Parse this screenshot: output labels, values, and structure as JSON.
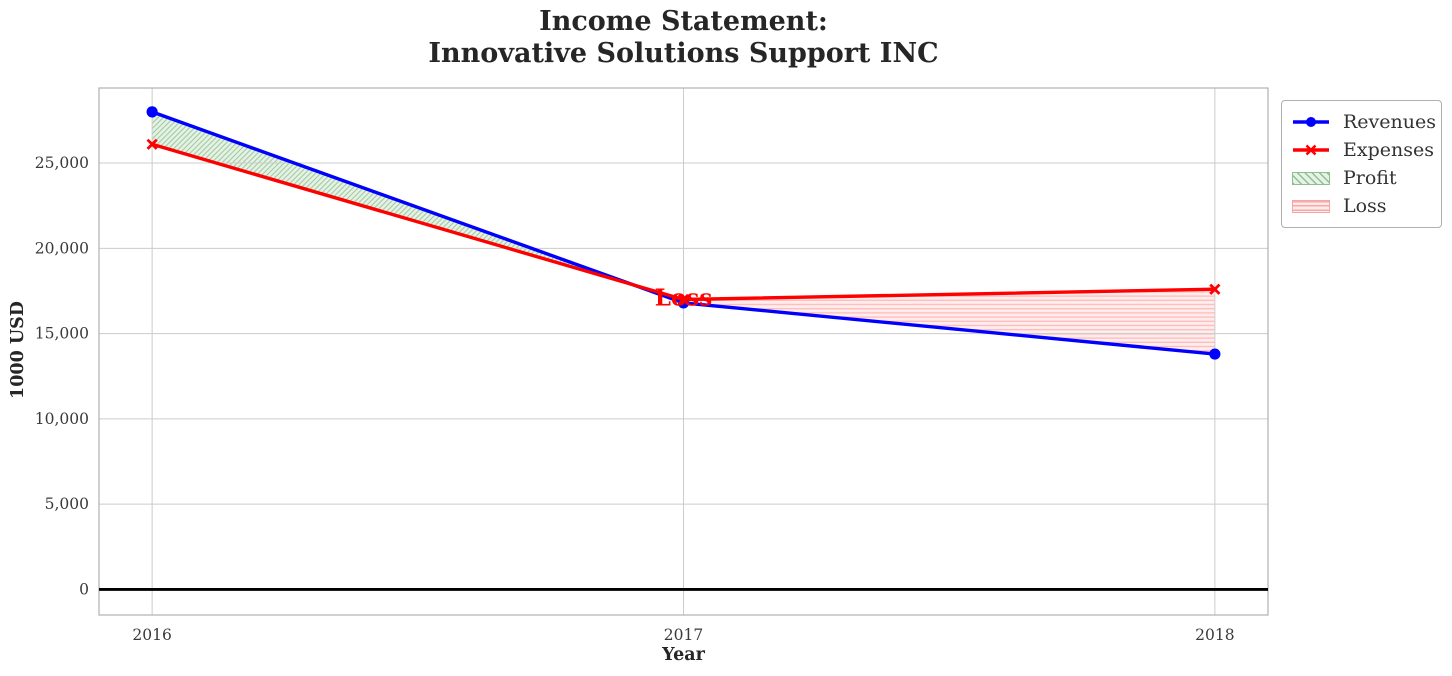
{
  "title": "Income Statement:\nInnovative Solutions Support INC",
  "chart_data": {
    "type": "line",
    "x": [
      2016,
      2017,
      2018
    ],
    "xtick_labels": [
      "2016",
      "2017",
      "2018"
    ],
    "yticks": [
      0,
      5000,
      10000,
      15000,
      20000,
      25000
    ],
    "ytick_labels": [
      "0",
      "5,000",
      "10,000",
      "15,000",
      "20,000",
      "25,000"
    ],
    "series": [
      {
        "name": "Revenues",
        "color": "#0000ff",
        "marker": "circle",
        "values": [
          28000,
          16800,
          13800
        ]
      },
      {
        "name": "Expenses",
        "color": "#ff0000",
        "marker": "x",
        "values": [
          26100,
          17000,
          17600
        ]
      }
    ],
    "fill_regions": [
      {
        "name": "Profit",
        "between": "revenues_above_expenses",
        "style": "green-diagonal-hatch"
      },
      {
        "name": "Loss",
        "between": "expenses_above_revenues",
        "style": "red-horizontal-hatch"
      }
    ],
    "title": "Income Statement:\nInnovative Solutions Support INC",
    "xlabel": "Year",
    "ylabel": "1000 USD",
    "xlim": [
      2015.9,
      2018.1
    ],
    "ylim": [
      -1500,
      29400
    ],
    "grid": true,
    "zero_line": true,
    "annotation": {
      "label": "Loss",
      "x": 2017,
      "y": 17050,
      "color": "#ff0000"
    },
    "legend": {
      "position": "outside-upper-right",
      "entries": [
        "Revenues",
        "Expenses",
        "Profit",
        "Loss"
      ]
    }
  },
  "colors": {
    "revenues": "#0000ff",
    "expenses": "#ff0000",
    "profit_edge": "#008000",
    "loss_edge": "#ff0000",
    "grid": "#cccccc",
    "spine": "#b0b0b0",
    "zero_line": "#000000",
    "text": "#262626"
  }
}
